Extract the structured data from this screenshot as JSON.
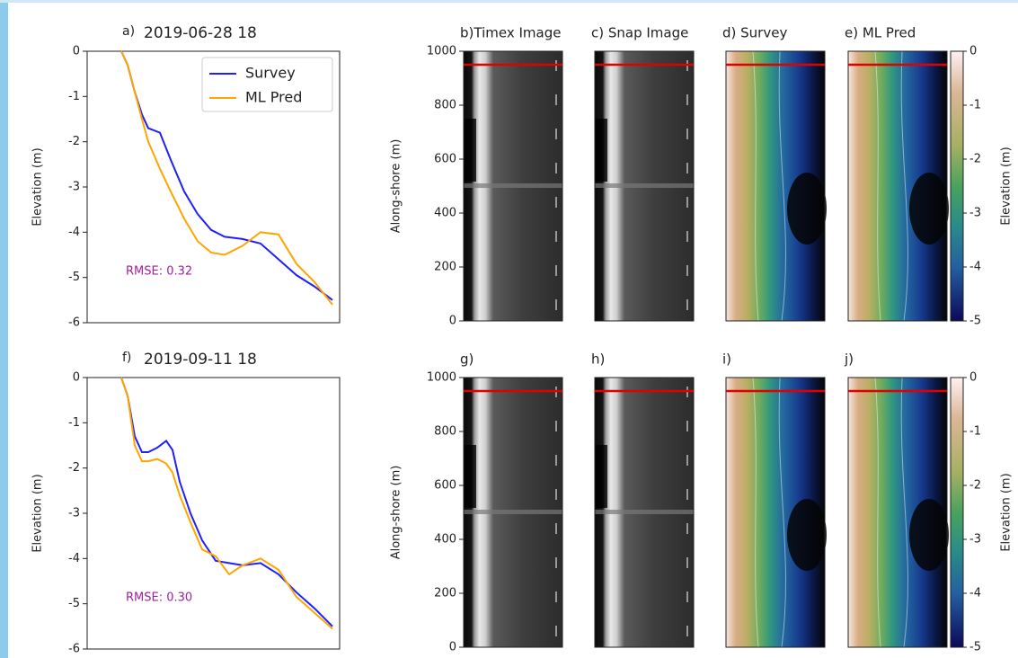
{
  "chart_data": [
    {
      "type": "line",
      "panel_label": "a)",
      "title": "2019-06-28 18",
      "ylabel": "Elevation (m)",
      "xlim": [
        0,
        281
      ],
      "ylim": [
        -6,
        0
      ],
      "yticks": [
        0,
        -1,
        -2,
        -3,
        -4,
        -5,
        -6
      ],
      "x": [
        38,
        45,
        53,
        61,
        68,
        81,
        93,
        108,
        123,
        138,
        153,
        173,
        193,
        213,
        233,
        253,
        273
      ],
      "series": [
        {
          "name": "Survey",
          "color": "#1f1fff",
          "values": [
            0,
            -0.3,
            -0.9,
            -1.4,
            -1.7,
            -1.8,
            -2.4,
            -3.1,
            -3.6,
            -3.95,
            -4.1,
            -4.15,
            -4.25,
            -4.6,
            -4.95,
            -5.2,
            -5.5
          ]
        },
        {
          "name": "ML Pred",
          "color": "#ffa500",
          "values": [
            0,
            -0.3,
            -0.9,
            -1.5,
            -2.0,
            -2.6,
            -3.1,
            -3.7,
            -4.2,
            -4.45,
            -4.5,
            -4.3,
            -4.0,
            -4.05,
            -4.7,
            -5.1,
            -5.6
          ]
        }
      ],
      "annotation": "RMSE: 0.32",
      "annotation_color": "#a020a0",
      "legend": "upper right"
    },
    {
      "type": "image-strip",
      "ylabel": "Along-shore (m)",
      "ylim": [
        0,
        1000
      ],
      "yticks": [
        0,
        200,
        400,
        600,
        800,
        1000
      ],
      "panels": [
        {
          "title": "b)Timex Image"
        },
        {
          "title": "c) Snap Image"
        },
        {
          "title": "d) Survey"
        },
        {
          "title": "e) ML Pred"
        }
      ],
      "marker_line": 950,
      "marker_color": "#e00000",
      "colorbar": {
        "label": "Elevation (m)",
        "lim": [
          -5,
          0
        ],
        "ticks": [
          0,
          -1,
          -2,
          -3,
          -4,
          -5
        ]
      }
    },
    {
      "type": "line",
      "panel_label": "f)",
      "title": "2019-09-11 18",
      "ylabel": "Elevation (m)",
      "xlim": [
        0,
        281
      ],
      "ylim": [
        -6,
        0
      ],
      "yticks": [
        0,
        -1,
        -2,
        -3,
        -4,
        -5,
        -6
      ],
      "x": [
        38,
        45,
        53,
        61,
        68,
        78,
        88,
        95,
        103,
        115,
        128,
        143,
        158,
        173,
        193,
        213,
        233,
        253,
        273
      ],
      "series": [
        {
          "name": "Survey",
          "color": "#1f1fff",
          "values": [
            0,
            -0.4,
            -1.3,
            -1.65,
            -1.65,
            -1.55,
            -1.4,
            -1.6,
            -2.3,
            -3.0,
            -3.6,
            -4.05,
            -4.1,
            -4.15,
            -4.1,
            -4.35,
            -4.75,
            -5.1,
            -5.5
          ]
        },
        {
          "name": "ML Pred",
          "color": "#ffa500",
          "values": [
            0,
            -0.4,
            -1.5,
            -1.85,
            -1.85,
            -1.8,
            -1.9,
            -2.1,
            -2.6,
            -3.2,
            -3.8,
            -3.95,
            -4.35,
            -4.15,
            -4.0,
            -4.25,
            -4.85,
            -5.2,
            -5.55
          ]
        }
      ],
      "annotation": "RMSE: 0.30",
      "annotation_color": "#a020a0"
    },
    {
      "type": "image-strip",
      "ylabel": "Along-shore (m)",
      "ylim": [
        0,
        1000
      ],
      "yticks": [
        0,
        200,
        400,
        600,
        800,
        1000
      ],
      "panels": [
        {
          "title": "g)"
        },
        {
          "title": "h)"
        },
        {
          "title": "i)"
        },
        {
          "title": "j)"
        }
      ],
      "marker_line": 950,
      "marker_color": "#e00000",
      "colorbar": {
        "label": "Elevation (m)",
        "lim": [
          -5,
          0
        ],
        "ticks": [
          0,
          -1,
          -2,
          -3,
          -4,
          -5
        ]
      }
    }
  ]
}
